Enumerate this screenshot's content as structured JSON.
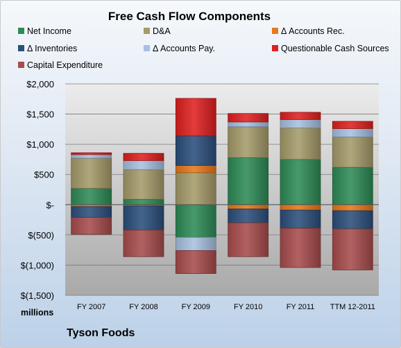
{
  "chart_data": {
    "type": "bar",
    "stacked": true,
    "title": "Free Cash Flow Components",
    "categories": [
      "FY 2007",
      "FY 2008",
      "FY 2009",
      "FY 2010",
      "FY 2011",
      "TTM 12-2011"
    ],
    "ylim": [
      -1500,
      2000
    ],
    "yticks": [
      2000,
      1500,
      1000,
      500,
      0,
      -500,
      -1000,
      -1500
    ],
    "ytick_labels": [
      "$2,000",
      "$1,500",
      "$1,000",
      "$500",
      "$-",
      "$(500)",
      "$(1,000)",
      "$(1,500)"
    ],
    "y_unit_label": "millions",
    "grid": true,
    "legend_position": "top",
    "series": [
      {
        "name": "Net Income",
        "color": "#2e8b57",
        "values": [
          270,
          90,
          -540,
          780,
          750,
          620
        ]
      },
      {
        "name": "D&A",
        "color": "#a59b6a",
        "values": [
          500,
          490,
          530,
          510,
          520,
          500
        ]
      },
      {
        "name": "Δ Accounts Rec.",
        "color": "#e8781a",
        "values": [
          -30,
          -20,
          120,
          -70,
          -90,
          -100
        ]
      },
      {
        "name": "Δ Inventories",
        "color": "#2c4f7c",
        "values": [
          -180,
          -400,
          490,
          -230,
          -300,
          -300
        ]
      },
      {
        "name": "Δ Accounts Pay.",
        "color": "#a8c0e0",
        "values": [
          60,
          150,
          -220,
          80,
          140,
          140
        ]
      },
      {
        "name": "Questionable Cash Sources",
        "color": "#e02020",
        "values": [
          30,
          120,
          620,
          140,
          120,
          120
        ]
      },
      {
        "name": "Capital Expenditure",
        "color": "#a84c4c",
        "values": [
          -280,
          -440,
          -380,
          -560,
          -650,
          -680
        ]
      }
    ]
  },
  "footer": {
    "unit_label": "millions",
    "company": "Tyson Foods"
  }
}
